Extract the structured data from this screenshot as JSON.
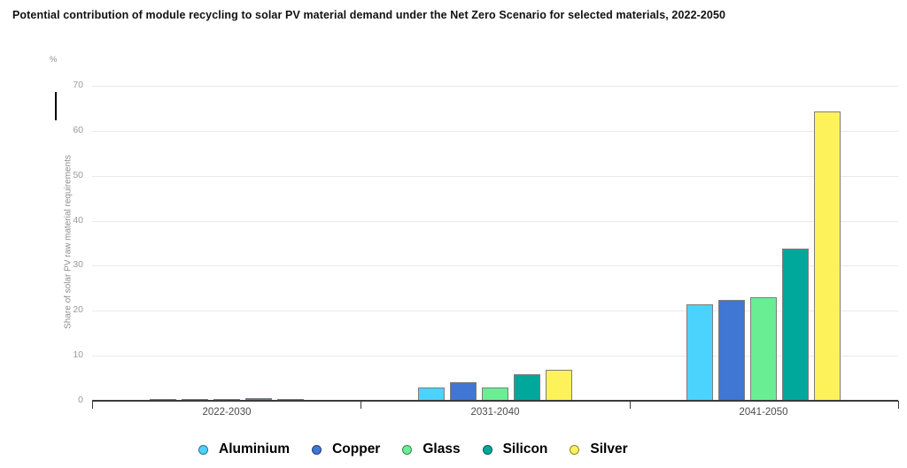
{
  "header": {
    "title": "Potential contribution of module recycling to solar PV material demand under the Net Zero Scenario for selected materials, 2022-2050"
  },
  "chart_data": {
    "type": "bar",
    "title": "Potential contribution of module recycling to solar PV material demand under the Net Zero Scenario for selected materials, 2022-2050",
    "unit": "%",
    "ylabel": "Share of solar PV raw material requirements",
    "xlabel": "",
    "categories": [
      "2022-2030",
      "2031-2040",
      "2041-2050"
    ],
    "series": [
      {
        "name": "Aluminium",
        "color": "#4bd3fd",
        "values": [
          0.2,
          3.0,
          21.5
        ]
      },
      {
        "name": "Copper",
        "color": "#4076d4",
        "values": [
          0.4,
          4.2,
          22.4
        ]
      },
      {
        "name": "Glass",
        "color": "#69ee93",
        "values": [
          0.2,
          2.9,
          23.1
        ]
      },
      {
        "name": "Silicon",
        "color": "#00a89c",
        "values": [
          0.6,
          5.9,
          33.8
        ]
      },
      {
        "name": "Silver",
        "color": "#fef25b",
        "values": [
          0.4,
          6.9,
          64.3
        ]
      }
    ],
    "ylim": [
      0,
      70
    ],
    "yticks": [
      0,
      10,
      20,
      30,
      40,
      50,
      60,
      70
    ],
    "grid": true,
    "legend_position": "bottom",
    "colors": {
      "gridline": "#e9e9e9",
      "axis": "#3a3a3a",
      "bar_outline": "#7d7d7d"
    }
  }
}
